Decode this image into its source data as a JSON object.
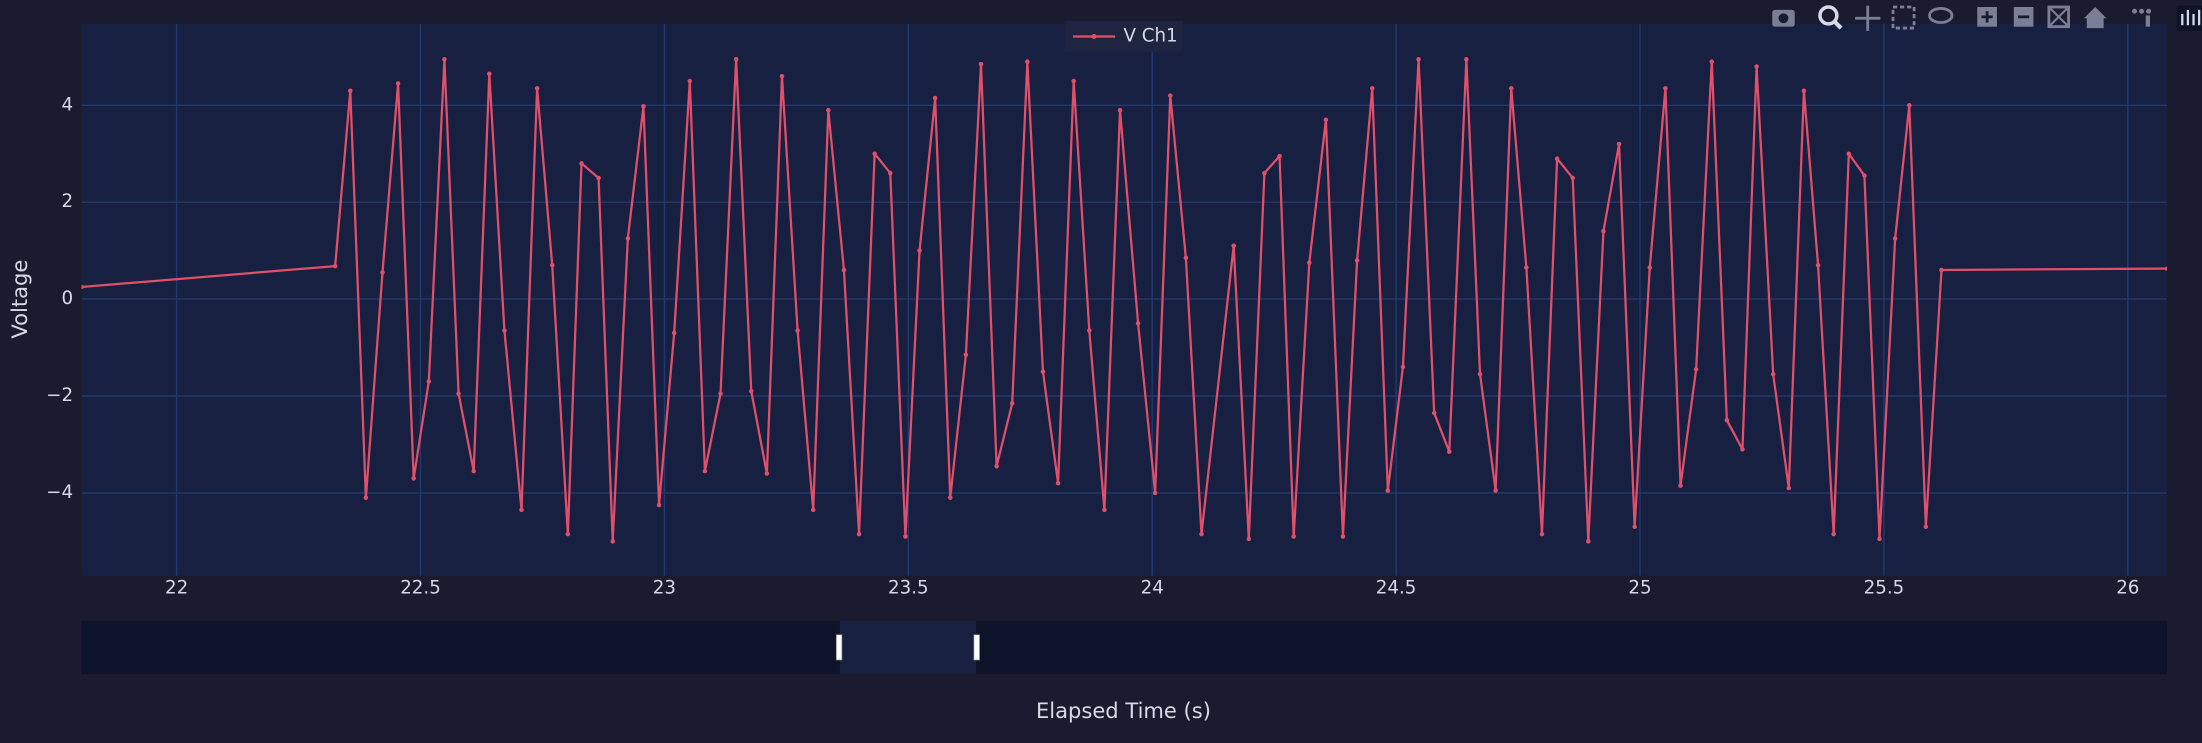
{
  "chart_data": {
    "type": "line",
    "x_label": "Elapsed Time (s)",
    "y_label": "Voltage",
    "legend": "top",
    "grid": true,
    "xlim": [
      21.805,
      26.08
    ],
    "ylim": [
      -5.71,
      5.68
    ],
    "xticks": [
      22,
      22.5,
      23,
      23.5,
      24,
      24.5,
      25,
      25.5,
      26
    ],
    "yticks": [
      {
        "value": -4,
        "label": "−4"
      },
      {
        "value": -2,
        "label": "−2"
      },
      0,
      2,
      4
    ],
    "series": [
      {
        "name": "V Ch1",
        "color": "#e0506a",
        "x": [
          21.805,
          22.325,
          22.356,
          22.388,
          22.422,
          22.454,
          22.486,
          22.517,
          22.549,
          22.578,
          22.609,
          22.641,
          22.672,
          22.707,
          22.739,
          22.77,
          22.802,
          22.83,
          22.865,
          22.894,
          22.925,
          22.957,
          22.989,
          23.02,
          23.052,
          23.083,
          23.115,
          23.147,
          23.178,
          23.21,
          23.241,
          23.273,
          23.305,
          23.336,
          23.368,
          23.399,
          23.431,
          23.463,
          23.494,
          23.523,
          23.555,
          23.586,
          23.618,
          23.649,
          23.681,
          23.713,
          23.744,
          23.776,
          23.807,
          23.839,
          23.871,
          23.902,
          23.934,
          23.971,
          24.006,
          24.037,
          24.069,
          24.101,
          24.167,
          24.198,
          24.23,
          24.261,
          24.29,
          24.322,
          24.356,
          24.391,
          24.42,
          24.451,
          24.483,
          24.514,
          24.546,
          24.578,
          24.609,
          24.644,
          24.672,
          24.704,
          24.736,
          24.767,
          24.799,
          24.83,
          24.862,
          24.894,
          24.925,
          24.957,
          24.989,
          25.02,
          25.052,
          25.083,
          25.115,
          25.147,
          25.178,
          25.21,
          25.239,
          25.273,
          25.305,
          25.336,
          25.365,
          25.397,
          25.428,
          25.46,
          25.491,
          25.523,
          25.552,
          25.586,
          25.618,
          26.08
        ],
        "values": [
          0.25,
          0.68,
          4.3,
          -4.1,
          0.55,
          4.45,
          -3.7,
          -1.7,
          4.95,
          -1.95,
          -3.55,
          4.65,
          -0.65,
          -4.35,
          4.35,
          0.7,
          -4.85,
          2.8,
          2.5,
          -5.0,
          1.25,
          3.98,
          -4.25,
          -0.7,
          4.5,
          -3.55,
          -1.95,
          4.95,
          -1.9,
          -3.6,
          4.6,
          -0.65,
          -4.35,
          3.9,
          0.6,
          -4.85,
          3.0,
          2.6,
          -4.9,
          1.0,
          4.15,
          -4.1,
          -1.15,
          4.85,
          -3.45,
          -2.15,
          4.9,
          -1.5,
          -3.8,
          4.5,
          -0.65,
          -4.35,
          3.9,
          -0.5,
          -4.0,
          4.2,
          0.85,
          -4.85,
          1.1,
          -4.95,
          2.6,
          2.95,
          -4.9,
          0.75,
          3.7,
          -4.9,
          0.8,
          4.35,
          -3.95,
          -1.4,
          4.95,
          -2.35,
          -3.15,
          4.95,
          -1.55,
          -3.95,
          4.35,
          0.65,
          -4.85,
          2.9,
          2.5,
          -5.0,
          1.4,
          3.2,
          -4.7,
          0.65,
          4.35,
          -3.85,
          -1.45,
          4.9,
          -2.5,
          -3.1,
          4.8,
          -1.55,
          -3.9,
          4.3,
          0.7,
          -4.85,
          3.0,
          2.55,
          -4.95,
          1.25,
          4.0,
          -4.7,
          0.6,
          0.63
        ]
      }
    ]
  }
}
